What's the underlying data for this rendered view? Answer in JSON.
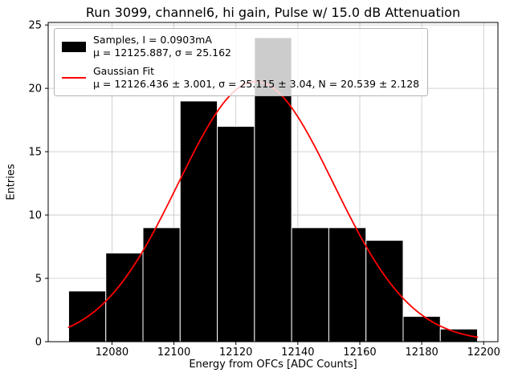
{
  "chart_data": {
    "type": "bar",
    "title": "Run 3099, channel6, hi gain, Pulse w/ 15.0 dB Attenuation",
    "xlabel": "Energy from OFCs [ADC Counts]",
    "ylabel": "Entries",
    "xlim": [
      12059.4,
      12204.6
    ],
    "ylim": [
      0,
      25.2
    ],
    "xticks": [
      12080,
      12100,
      12120,
      12140,
      12160,
      12180,
      12200
    ],
    "yticks": [
      0,
      5,
      10,
      15,
      20,
      25
    ],
    "grid": true,
    "grid_color": "#c6c6c6",
    "histogram": {
      "bin_edges": [
        12066,
        12078,
        12090,
        12102,
        12114,
        12126,
        12138,
        12150,
        12162,
        12174,
        12186,
        12198
      ],
      "counts": [
        4,
        7,
        9,
        19,
        17,
        24,
        9,
        9,
        8,
        2,
        1
      ],
      "color": "#000000",
      "edgecolor": "#ffffff"
    },
    "gaussian_fit": {
      "mu": 12126.436,
      "sigma": 25.115,
      "amplitude": 20.539,
      "x_range": [
        12066,
        12198
      ],
      "color": "#ff0000"
    },
    "legend": {
      "position": "upper left",
      "entries": [
        {
          "marker": "patch",
          "line1": "Samples, I = 0.0903mA",
          "line2": "μ = 12125.887, σ = 25.162"
        },
        {
          "marker": "line",
          "line1": "Gaussian Fit",
          "line2": "μ = 12126.436 ± 3.001, σ = 25.115 ± 3.04, N = 20.539 ± 2.128"
        }
      ]
    }
  }
}
